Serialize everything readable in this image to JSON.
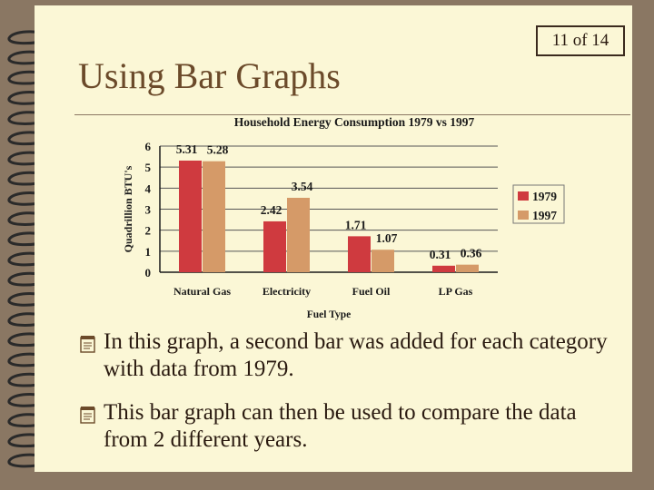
{
  "slide": {
    "counter": "11 of 14",
    "title": "Using Bar Graphs",
    "bullets": [
      "In this graph, a second bar was added for each category with data from 1979.",
      "This bar graph can then be used to compare the data from 2 different years."
    ],
    "bullet_icon": "notepad-icon"
  },
  "colors": {
    "series_1979": "#cf3a3f",
    "series_1997": "#d59a68",
    "background": "#fbf7d6",
    "frame": "#8a7763"
  },
  "chart_data": {
    "type": "bar",
    "title": "Household Energy Consumption 1979 vs 1997",
    "xlabel": "Fuel Type",
    "ylabel": "Quadrillion BTU's",
    "ylim": [
      0,
      6
    ],
    "yticks": [
      0,
      1,
      2,
      3,
      4,
      5,
      6
    ],
    "grid": true,
    "legend": "right",
    "categories": [
      "Natural Gas",
      "Electricity",
      "Fuel Oil",
      "LP Gas"
    ],
    "series": [
      {
        "name": "1979",
        "values": [
          5.31,
          2.42,
          1.71,
          0.31
        ],
        "labels": [
          "5.31",
          "2.42",
          "1.71",
          "0.31"
        ]
      },
      {
        "name": "1997",
        "values": [
          5.28,
          3.54,
          1.07,
          0.36
        ],
        "labels": [
          "5.28",
          "3.54",
          "1.07",
          "0.36"
        ]
      }
    ]
  }
}
